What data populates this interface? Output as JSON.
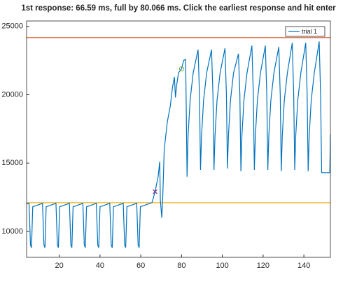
{
  "chart_data": {
    "type": "line",
    "title": "1st response:  66.59 ms, full by  80.066 ms. Click the earliest response and hit enter",
    "xlim": [
      4,
      153
    ],
    "ylim": [
      8100,
      25400
    ],
    "xticks": [
      20,
      40,
      60,
      80,
      100,
      120,
      140
    ],
    "yticks": [
      10000,
      15000,
      20000,
      25000
    ],
    "legend": "northeast",
    "series": [
      {
        "name": "trial 1",
        "color": "#0072bd",
        "x": [
          4,
          5.2,
          5.9,
          6.4,
          7.0,
          11.8,
          12.5,
          13.0,
          13.6,
          18.4,
          19.1,
          19.6,
          20.2,
          25.0,
          25.7,
          26.2,
          26.8,
          31.6,
          32.3,
          32.8,
          33.4,
          38.2,
          38.9,
          39.4,
          40.0,
          44.8,
          45.5,
          46.0,
          46.6,
          51.4,
          52.1,
          52.6,
          53.2,
          58.0,
          58.7,
          59.2,
          59.8,
          65.5,
          67,
          68.5,
          69.3,
          69.6,
          70.3,
          70.8,
          71.5,
          73,
          74.5,
          75.5,
          76.5,
          77,
          77.5,
          78.5,
          80,
          81,
          82,
          82.7,
          83.2,
          84.2,
          85.7,
          88.1,
          88.8,
          89.3,
          89.8,
          90.8,
          92.3,
          94.7,
          95.4,
          95.9,
          96.4,
          97.4,
          98.9,
          101.3,
          102.0,
          102.5,
          103.0,
          104.0,
          105.5,
          107.9,
          108.6,
          109.1,
          109.6,
          110.6,
          112.1,
          114.5,
          115.2,
          115.7,
          116.2,
          117.2,
          118.7,
          121.1,
          121.8,
          122.3,
          122.8,
          123.8,
          125.3,
          127.7,
          128.4,
          128.9,
          129.4,
          130.4,
          131.9,
          134.3,
          135.0,
          135.5,
          136.0,
          137.0,
          138.5,
          140.9,
          141.6,
          142.1,
          142.6,
          143.6,
          145.1,
          147.5,
          148.2,
          148.7,
          152.7,
          153
        ],
        "values": [
          12000,
          12050,
          9000,
          8800,
          11800,
          12050,
          9000,
          8800,
          11800,
          12050,
          9000,
          8800,
          11800,
          12050,
          9000,
          8800,
          11800,
          12050,
          9000,
          8800,
          11800,
          12050,
          9000,
          8800,
          11800,
          12050,
          9000,
          8800,
          11800,
          12050,
          9000,
          8800,
          11800,
          12050,
          9000,
          8800,
          11800,
          12100,
          12900,
          14000,
          15100,
          12300,
          11000,
          12600,
          16000,
          18000,
          19200,
          20500,
          21300,
          19800,
          20600,
          21600,
          21900,
          22500,
          22600,
          14000,
          17000,
          19600,
          21600,
          23300,
          20000,
          14500,
          17000,
          19600,
          21600,
          23300,
          20000,
          14500,
          17000,
          19600,
          21600,
          23400,
          20000,
          14600,
          17000,
          19600,
          21600,
          23000,
          20000,
          14400,
          17000,
          19600,
          21600,
          23600,
          20000,
          14500,
          17000,
          19600,
          21600,
          23600,
          20000,
          14500,
          17000,
          19600,
          21600,
          23500,
          20000,
          14400,
          17000,
          19600,
          21600,
          23800,
          20000,
          14500,
          17000,
          19600,
          21600,
          23800,
          20000,
          14400,
          17000,
          19600,
          21600,
          23900,
          20000,
          14300,
          14300,
          17100
        ]
      }
    ],
    "hlines": [
      {
        "y": 24180,
        "color": "#d95319"
      },
      {
        "y": 12100,
        "color": "#edb120"
      }
    ],
    "markers": [
      {
        "x": 67,
        "y": 12900,
        "symbol": "x",
        "color": "#7e2f8e"
      },
      {
        "x": 80,
        "y": 21900,
        "symbol": "o",
        "color": "#77ac30"
      }
    ]
  }
}
